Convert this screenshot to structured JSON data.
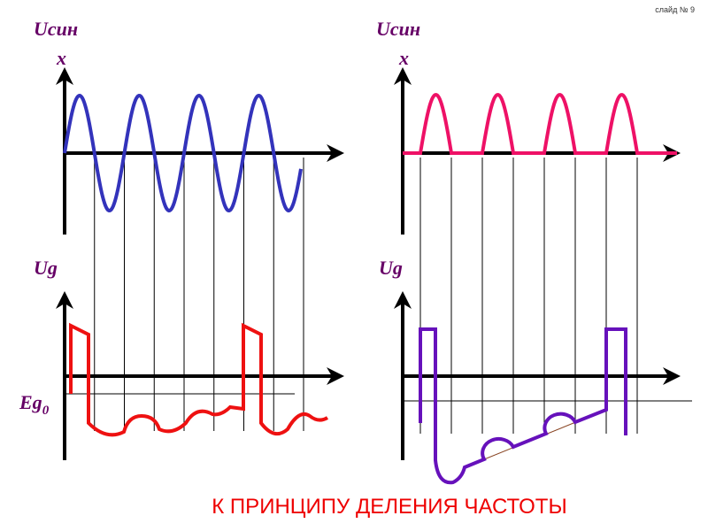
{
  "slide_label": "слайд № 9",
  "left": {
    "top_label": "Uсин",
    "top_label_sub": "х",
    "bottom_label": "Ug",
    "level_label": "Eg",
    "level_label_sub": "0"
  },
  "right": {
    "top_label": "Uсин",
    "top_label_sub": "х",
    "bottom_label": "Ug"
  },
  "title": "К ПРИНЦИПУ ДЕЛЕНИЯ ЧАСТОТЫ"
}
